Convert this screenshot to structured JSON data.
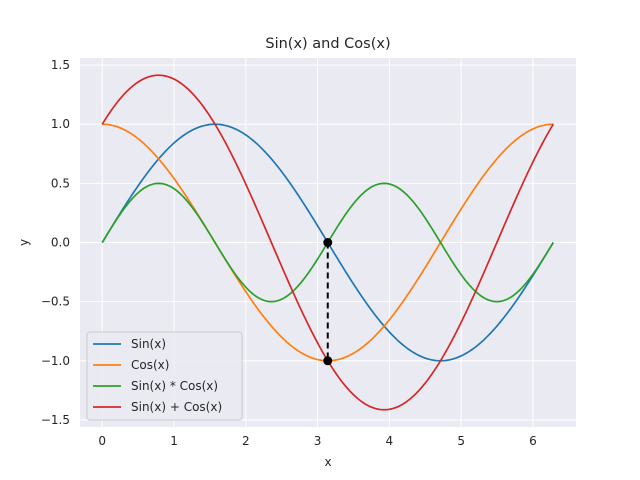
{
  "chart_data": {
    "type": "line",
    "title": "Sin(x) and Cos(x)",
    "xlabel": "x",
    "ylabel": "y",
    "xlim": [
      -0.31,
      6.6
    ],
    "ylim": [
      -1.56,
      1.56
    ],
    "xticks": [
      0,
      1,
      2,
      3,
      4,
      5,
      6
    ],
    "xtick_labels": [
      "0",
      "1",
      "2",
      "3",
      "4",
      "5",
      "6"
    ],
    "yticks": [
      -1.5,
      -1.0,
      -0.5,
      0.0,
      0.5,
      1.0,
      1.5
    ],
    "ytick_labels": [
      "−1.5",
      "−1.0",
      "−0.5",
      "0.0",
      "0.5",
      "1.0",
      "1.5"
    ],
    "grid": true,
    "legend_position": "lower-left",
    "x_range": [
      0,
      6.283185
    ],
    "series": [
      {
        "name": "Sin(x)",
        "color": "#1f77b4",
        "function": "sin",
        "x": [
          0,
          0.785,
          1.571,
          2.356,
          3.142,
          3.927,
          4.712,
          5.498,
          6.283
        ],
        "values": [
          0,
          0.707,
          1.0,
          0.707,
          0,
          -0.707,
          -1.0,
          -0.707,
          0
        ]
      },
      {
        "name": "Cos(x)",
        "color": "#ff7f0e",
        "function": "cos",
        "x": [
          0,
          0.785,
          1.571,
          2.356,
          3.142,
          3.927,
          4.712,
          5.498,
          6.283
        ],
        "values": [
          1.0,
          0.707,
          0,
          -0.707,
          -1.0,
          -0.707,
          0,
          0.707,
          1.0
        ]
      },
      {
        "name": "Sin(x) * Cos(x)",
        "color": "#2ca02c",
        "function": "sin*cos",
        "x": [
          0,
          0.785,
          1.571,
          2.356,
          3.142,
          3.927,
          4.712,
          5.498,
          6.283
        ],
        "values": [
          0,
          0.5,
          0,
          -0.5,
          0,
          0.5,
          0,
          -0.5,
          0
        ]
      },
      {
        "name": "Sin(x) + Cos(x)",
        "color": "#d62728",
        "function": "sin+cos",
        "x": [
          0,
          0.785,
          1.571,
          2.356,
          3.142,
          3.927,
          4.712,
          5.498,
          6.283
        ],
        "values": [
          1.0,
          1.414,
          1.0,
          0,
          -1.0,
          -1.414,
          -1.0,
          0,
          1.0
        ]
      }
    ],
    "annotations": [
      {
        "type": "dashed-segment",
        "x": 3.14159,
        "y1": 0.0,
        "y2": -1.0,
        "color": "#000000"
      },
      {
        "type": "point",
        "x": 3.14159,
        "y": 0.0,
        "color": "#000000"
      },
      {
        "type": "point",
        "x": 3.14159,
        "y": -1.0,
        "color": "#000000"
      }
    ]
  }
}
